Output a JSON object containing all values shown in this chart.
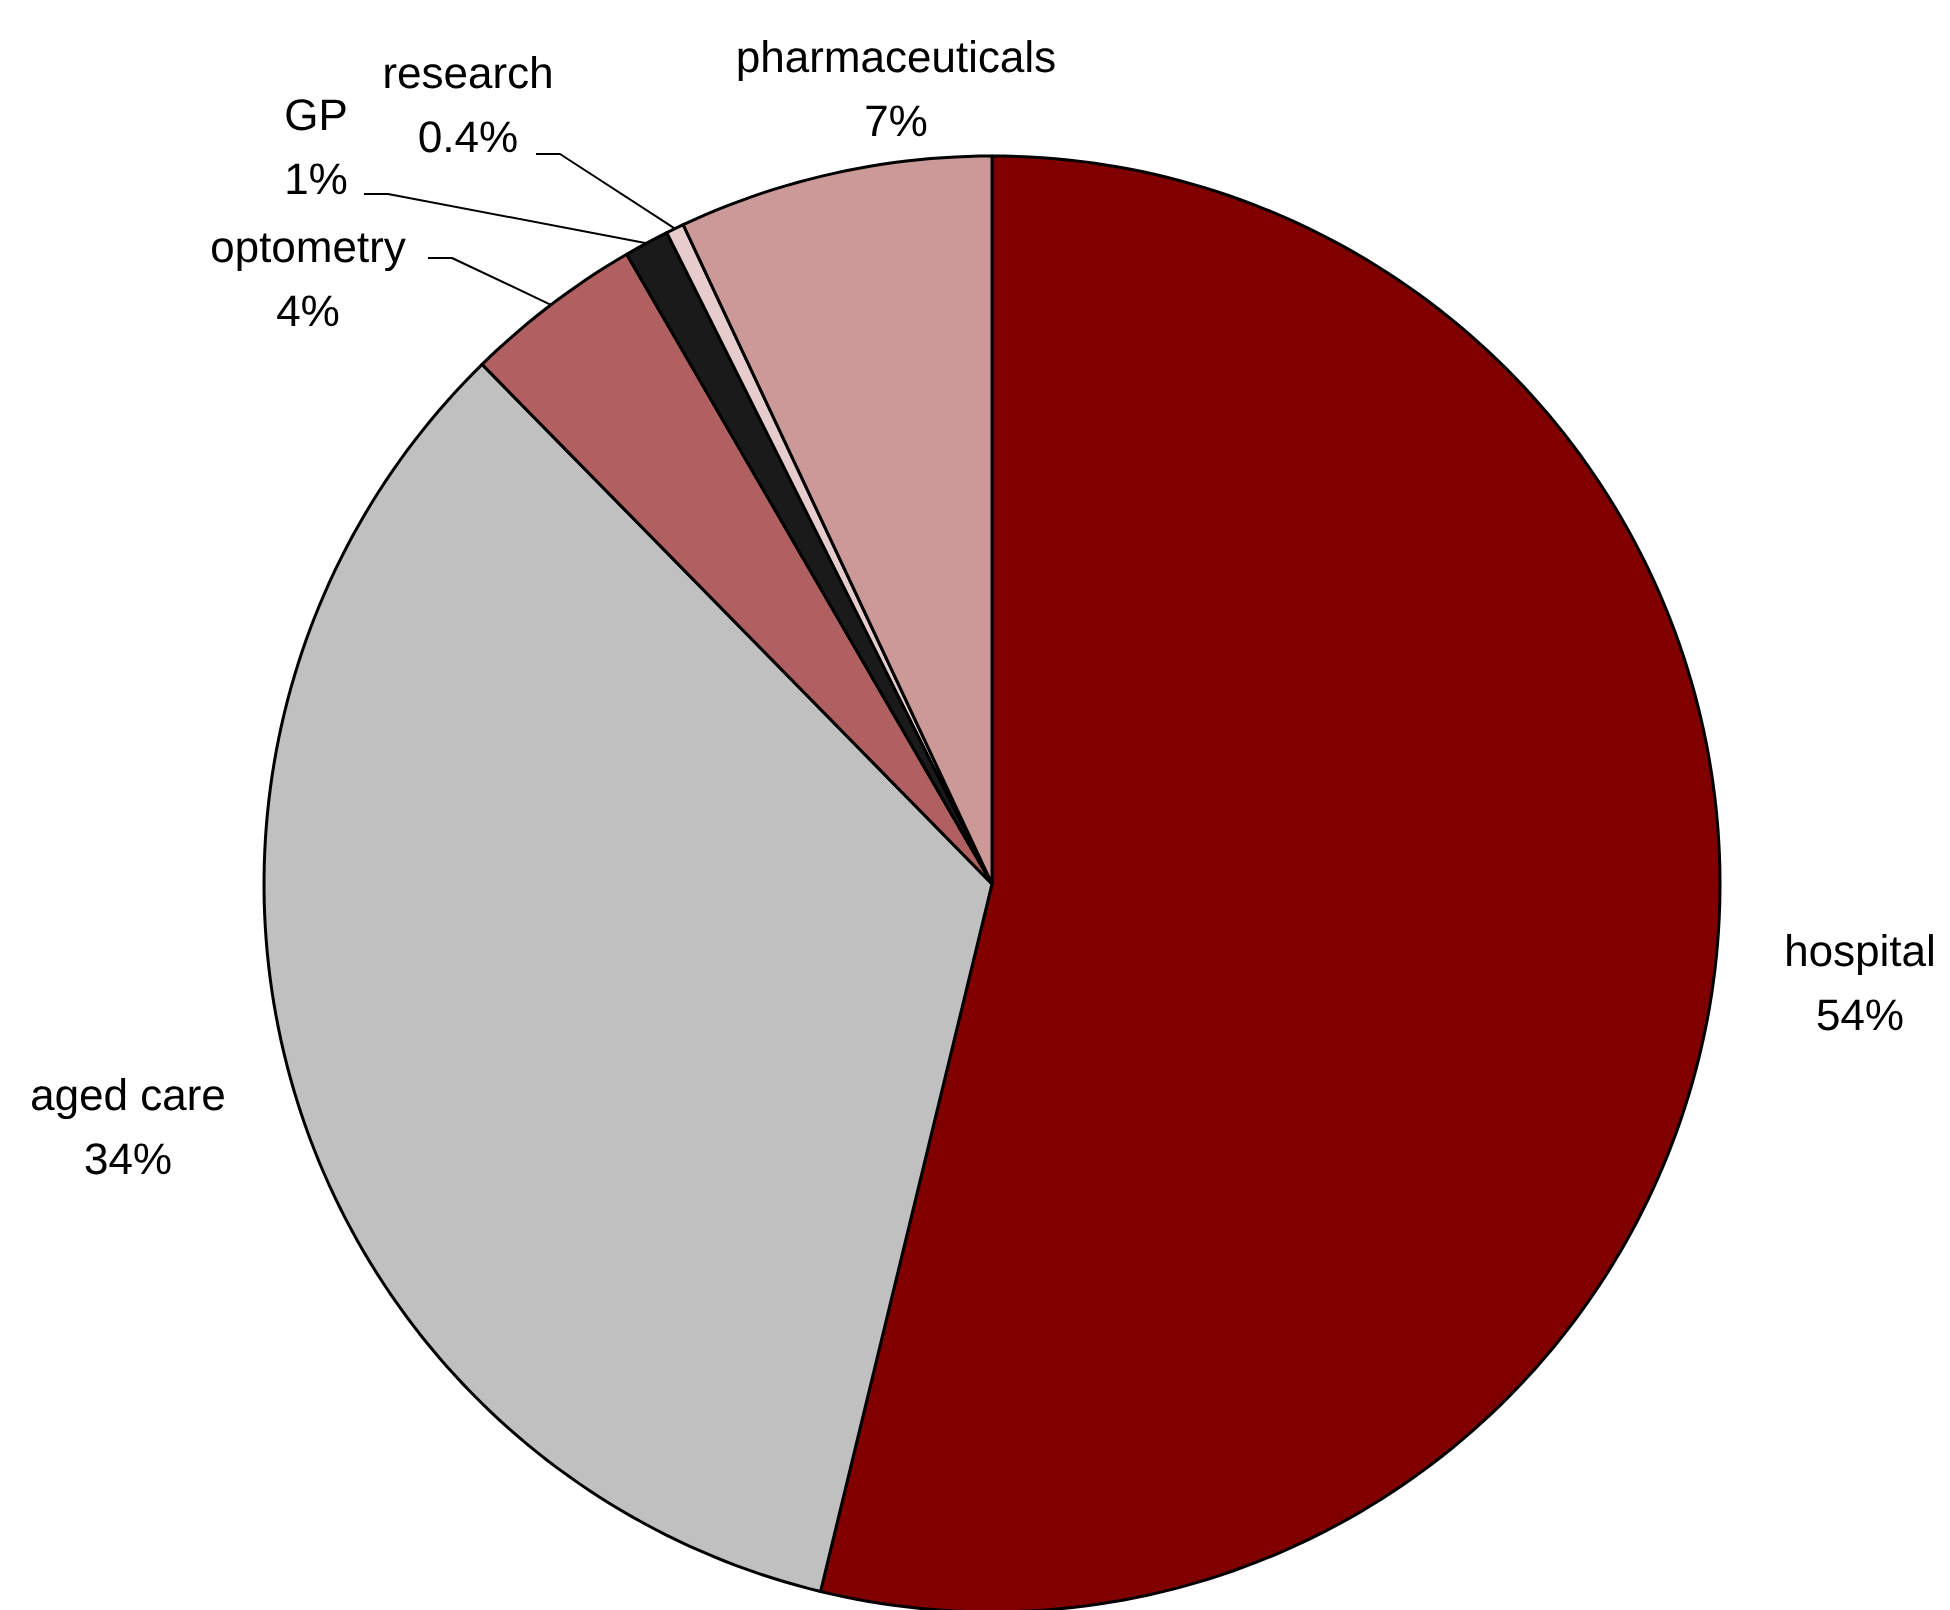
{
  "chart_data": {
    "type": "pie",
    "categories": [
      "hospital",
      "aged care",
      "optometry",
      "GP",
      "research",
      "pharmaceuticals"
    ],
    "values": [
      54,
      34,
      4,
      1,
      0.4,
      7
    ],
    "value_labels": [
      "54%",
      "34%",
      "4%",
      "1%",
      "0.4%",
      "7%"
    ],
    "colors": [
      "#800000",
      "#c0c0c0",
      "#b06060",
      "#1a1a1a",
      "#e6cccc",
      "#cc9999"
    ]
  }
}
